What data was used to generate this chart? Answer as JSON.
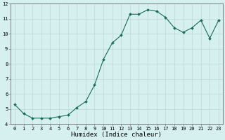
{
  "x": [
    0,
    1,
    2,
    3,
    4,
    5,
    6,
    7,
    8,
    9,
    10,
    11,
    12,
    13,
    14,
    15,
    16,
    17,
    18,
    19,
    20,
    21,
    22,
    23
  ],
  "y": [
    5.3,
    4.7,
    4.4,
    4.4,
    4.4,
    4.5,
    4.6,
    5.1,
    5.5,
    6.6,
    8.3,
    9.4,
    9.9,
    11.3,
    11.3,
    11.6,
    11.5,
    11.1,
    10.4,
    10.1,
    10.4,
    10.9,
    9.7,
    10.9
  ],
  "line_color": "#1a6b5a",
  "marker": "D",
  "marker_size": 2.0,
  "bg_color": "#d6f0ef",
  "grid_color": "#b8d8d6",
  "xlabel": "Humidex (Indice chaleur)",
  "ylim": [
    4,
    12
  ],
  "xlim": [
    -0.5,
    23.5
  ],
  "yticks": [
    4,
    5,
    6,
    7,
    8,
    9,
    10,
    11,
    12
  ],
  "xticks": [
    0,
    1,
    2,
    3,
    4,
    5,
    6,
    7,
    8,
    9,
    10,
    11,
    12,
    13,
    14,
    15,
    16,
    17,
    18,
    19,
    20,
    21,
    22,
    23
  ],
  "tick_fontsize": 5.0,
  "xlabel_fontsize": 6.5,
  "label_color": "#000000"
}
